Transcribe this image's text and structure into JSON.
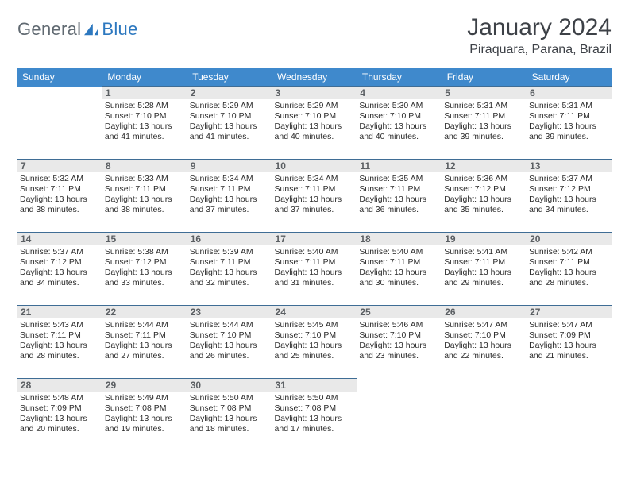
{
  "brand": {
    "left": "General",
    "right": "Blue",
    "left_color": "#6b7177",
    "right_color": "#2d78bf",
    "icon_color": "#2d78bf"
  },
  "title": "January 2024",
  "location": "Piraquara, Parana, Brazil",
  "header_bg": "#3f89cc",
  "row_border": "#3f6d95",
  "daynum_bg": "#e9e9e9",
  "weekdays": [
    "Sunday",
    "Monday",
    "Tuesday",
    "Wednesday",
    "Thursday",
    "Friday",
    "Saturday"
  ],
  "weeks": [
    [
      null,
      {
        "n": "1",
        "sr": "5:28 AM",
        "ss": "7:10 PM",
        "dl": "13 hours and 41 minutes."
      },
      {
        "n": "2",
        "sr": "5:29 AM",
        "ss": "7:10 PM",
        "dl": "13 hours and 41 minutes."
      },
      {
        "n": "3",
        "sr": "5:29 AM",
        "ss": "7:10 PM",
        "dl": "13 hours and 40 minutes."
      },
      {
        "n": "4",
        "sr": "5:30 AM",
        "ss": "7:10 PM",
        "dl": "13 hours and 40 minutes."
      },
      {
        "n": "5",
        "sr": "5:31 AM",
        "ss": "7:11 PM",
        "dl": "13 hours and 39 minutes."
      },
      {
        "n": "6",
        "sr": "5:31 AM",
        "ss": "7:11 PM",
        "dl": "13 hours and 39 minutes."
      }
    ],
    [
      {
        "n": "7",
        "sr": "5:32 AM",
        "ss": "7:11 PM",
        "dl": "13 hours and 38 minutes."
      },
      {
        "n": "8",
        "sr": "5:33 AM",
        "ss": "7:11 PM",
        "dl": "13 hours and 38 minutes."
      },
      {
        "n": "9",
        "sr": "5:34 AM",
        "ss": "7:11 PM",
        "dl": "13 hours and 37 minutes."
      },
      {
        "n": "10",
        "sr": "5:34 AM",
        "ss": "7:11 PM",
        "dl": "13 hours and 37 minutes."
      },
      {
        "n": "11",
        "sr": "5:35 AM",
        "ss": "7:11 PM",
        "dl": "13 hours and 36 minutes."
      },
      {
        "n": "12",
        "sr": "5:36 AM",
        "ss": "7:12 PM",
        "dl": "13 hours and 35 minutes."
      },
      {
        "n": "13",
        "sr": "5:37 AM",
        "ss": "7:12 PM",
        "dl": "13 hours and 34 minutes."
      }
    ],
    [
      {
        "n": "14",
        "sr": "5:37 AM",
        "ss": "7:12 PM",
        "dl": "13 hours and 34 minutes."
      },
      {
        "n": "15",
        "sr": "5:38 AM",
        "ss": "7:12 PM",
        "dl": "13 hours and 33 minutes."
      },
      {
        "n": "16",
        "sr": "5:39 AM",
        "ss": "7:11 PM",
        "dl": "13 hours and 32 minutes."
      },
      {
        "n": "17",
        "sr": "5:40 AM",
        "ss": "7:11 PM",
        "dl": "13 hours and 31 minutes."
      },
      {
        "n": "18",
        "sr": "5:40 AM",
        "ss": "7:11 PM",
        "dl": "13 hours and 30 minutes."
      },
      {
        "n": "19",
        "sr": "5:41 AM",
        "ss": "7:11 PM",
        "dl": "13 hours and 29 minutes."
      },
      {
        "n": "20",
        "sr": "5:42 AM",
        "ss": "7:11 PM",
        "dl": "13 hours and 28 minutes."
      }
    ],
    [
      {
        "n": "21",
        "sr": "5:43 AM",
        "ss": "7:11 PM",
        "dl": "13 hours and 28 minutes."
      },
      {
        "n": "22",
        "sr": "5:44 AM",
        "ss": "7:11 PM",
        "dl": "13 hours and 27 minutes."
      },
      {
        "n": "23",
        "sr": "5:44 AM",
        "ss": "7:10 PM",
        "dl": "13 hours and 26 minutes."
      },
      {
        "n": "24",
        "sr": "5:45 AM",
        "ss": "7:10 PM",
        "dl": "13 hours and 25 minutes."
      },
      {
        "n": "25",
        "sr": "5:46 AM",
        "ss": "7:10 PM",
        "dl": "13 hours and 23 minutes."
      },
      {
        "n": "26",
        "sr": "5:47 AM",
        "ss": "7:10 PM",
        "dl": "13 hours and 22 minutes."
      },
      {
        "n": "27",
        "sr": "5:47 AM",
        "ss": "7:09 PM",
        "dl": "13 hours and 21 minutes."
      }
    ],
    [
      {
        "n": "28",
        "sr": "5:48 AM",
        "ss": "7:09 PM",
        "dl": "13 hours and 20 minutes."
      },
      {
        "n": "29",
        "sr": "5:49 AM",
        "ss": "7:08 PM",
        "dl": "13 hours and 19 minutes."
      },
      {
        "n": "30",
        "sr": "5:50 AM",
        "ss": "7:08 PM",
        "dl": "13 hours and 18 minutes."
      },
      {
        "n": "31",
        "sr": "5:50 AM",
        "ss": "7:08 PM",
        "dl": "13 hours and 17 minutes."
      },
      null,
      null,
      null
    ]
  ],
  "labels": {
    "sunrise": "Sunrise:",
    "sunset": "Sunset:",
    "daylight": "Daylight:"
  }
}
